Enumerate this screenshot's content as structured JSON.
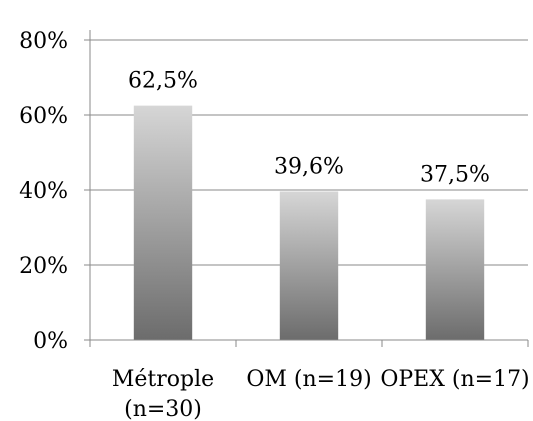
{
  "chart_data": {
    "type": "bar",
    "title": "",
    "xlabel": "",
    "ylabel": "",
    "categories": [
      [
        "Métrople",
        "(n=30)"
      ],
      [
        "OM (n=19)"
      ],
      [
        "OPEX (n=17)"
      ]
    ],
    "values": [
      62.5,
      39.6,
      37.5
    ],
    "value_labels": [
      "62,5%",
      "39,6%",
      "37,5%"
    ],
    "ylim": [
      0,
      80
    ],
    "yticks": [
      0,
      20,
      40,
      60,
      80
    ],
    "ytick_labels": [
      "0%",
      "20%",
      "40%",
      "60%",
      "80%"
    ],
    "grid": true,
    "legend": "none",
    "colors": {
      "bar_top": "#d6d6d6",
      "bar_bottom": "#6c6c6c",
      "grid": "#8a8a8a",
      "axis": "#8a8a8a"
    }
  }
}
